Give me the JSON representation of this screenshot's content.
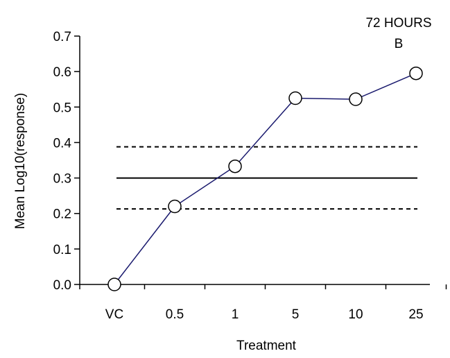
{
  "chart_data": {
    "type": "line",
    "title": "",
    "annotations": [
      "72 HOURS",
      "B"
    ],
    "xlabel": "Treatment",
    "ylabel": "Mean Log10(response)",
    "categories": [
      "VC",
      "0.5",
      "1",
      "5",
      "10",
      "25"
    ],
    "series": [
      {
        "values": [
          0.0,
          0.22,
          0.333,
          0.525,
          0.522,
          0.595
        ],
        "color": "#1a1a6e",
        "marker": "open-circle"
      }
    ],
    "reference_lines": [
      {
        "value": 0.3,
        "style": "solid"
      },
      {
        "value": 0.388,
        "style": "dashed"
      },
      {
        "value": 0.213,
        "style": "dashed"
      }
    ],
    "ylim": [
      0.0,
      0.7
    ],
    "yticks": [
      "0.0",
      "0.1",
      "0.2",
      "0.3",
      "0.4",
      "0.5",
      "0.6",
      "0.7"
    ],
    "grid": false,
    "legend": "none"
  }
}
